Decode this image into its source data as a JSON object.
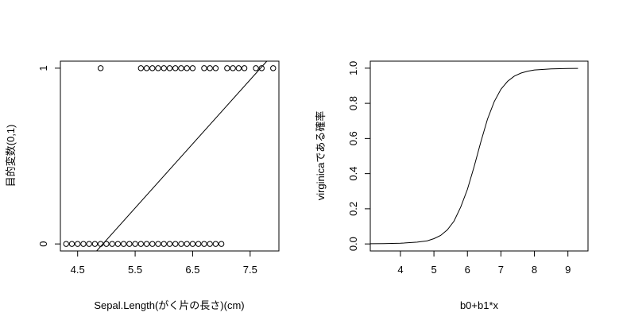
{
  "chart_data": [
    {
      "type": "scatter",
      "title": "",
      "xlabel": "Sepal.Length(がく片の長さ)(cm)",
      "ylabel": "目的変数(0,1)",
      "xlim": [
        4.2,
        8.0
      ],
      "ylim": [
        -0.04,
        1.04
      ],
      "xticks": [
        4.5,
        5.5,
        6.5,
        7.5
      ],
      "xtick_labels": [
        "4.5",
        "5.5",
        "6.5",
        "7.5"
      ],
      "yticks": [
        0,
        1
      ],
      "ytick_labels": [
        "0",
        "1"
      ],
      "grid": false,
      "series": [
        {
          "marker": "open-circle",
          "points": [
            [
              4.3,
              0
            ],
            [
              4.4,
              0
            ],
            [
              4.5,
              0
            ],
            [
              4.6,
              0
            ],
            [
              4.7,
              0
            ],
            [
              4.8,
              0
            ],
            [
              4.9,
              0
            ],
            [
              5.0,
              0
            ],
            [
              5.1,
              0
            ],
            [
              5.2,
              0
            ],
            [
              5.3,
              0
            ],
            [
              5.4,
              0
            ],
            [
              5.5,
              0
            ],
            [
              5.6,
              0
            ],
            [
              5.7,
              0
            ],
            [
              5.8,
              0
            ],
            [
              5.9,
              0
            ],
            [
              6.0,
              0
            ],
            [
              6.1,
              0
            ],
            [
              6.2,
              0
            ],
            [
              6.3,
              0
            ],
            [
              6.4,
              0
            ],
            [
              6.5,
              0
            ],
            [
              6.6,
              0
            ],
            [
              6.7,
              0
            ],
            [
              6.8,
              0
            ],
            [
              6.9,
              0
            ],
            [
              7.0,
              0
            ],
            [
              4.9,
              1
            ],
            [
              5.6,
              1
            ],
            [
              5.7,
              1
            ],
            [
              5.8,
              1
            ],
            [
              5.9,
              1
            ],
            [
              6.0,
              1
            ],
            [
              6.1,
              1
            ],
            [
              6.2,
              1
            ],
            [
              6.3,
              1
            ],
            [
              6.4,
              1
            ],
            [
              6.5,
              1
            ],
            [
              6.7,
              1
            ],
            [
              6.8,
              1
            ],
            [
              6.9,
              1
            ],
            [
              7.1,
              1
            ],
            [
              7.2,
              1
            ],
            [
              7.3,
              1
            ],
            [
              7.4,
              1
            ],
            [
              7.6,
              1
            ],
            [
              7.7,
              1
            ],
            [
              7.9,
              1
            ]
          ]
        },
        {
          "type": "line",
          "points": [
            [
              4.83,
              -0.04
            ],
            [
              7.79,
              1.04
            ]
          ]
        }
      ]
    },
    {
      "type": "line",
      "title": "",
      "xlabel": "b0+b1*x",
      "ylabel": "virginicaである確率",
      "xlim": [
        3.1,
        9.6
      ],
      "ylim": [
        -0.04,
        1.04
      ],
      "xticks": [
        4,
        5,
        6,
        7,
        8,
        9
      ],
      "xtick_labels": [
        "4",
        "5",
        "6",
        "7",
        "8",
        "9"
      ],
      "yticks": [
        0,
        0.2,
        0.4,
        0.6,
        0.8,
        1.0
      ],
      "ytick_labels": [
        "0.0",
        "0.2",
        "0.4",
        "0.6",
        "0.8",
        "1.0"
      ],
      "grid": false,
      "series": [
        {
          "points": [
            [
              3.1,
              0.001
            ],
            [
              3.5,
              0.002
            ],
            [
              4.0,
              0.004
            ],
            [
              4.5,
              0.01
            ],
            [
              4.8,
              0.018
            ],
            [
              5.0,
              0.03
            ],
            [
              5.2,
              0.048
            ],
            [
              5.4,
              0.08
            ],
            [
              5.6,
              0.13
            ],
            [
              5.8,
              0.21
            ],
            [
              6.0,
              0.31
            ],
            [
              6.2,
              0.44
            ],
            [
              6.4,
              0.58
            ],
            [
              6.6,
              0.71
            ],
            [
              6.8,
              0.81
            ],
            [
              7.0,
              0.88
            ],
            [
              7.2,
              0.925
            ],
            [
              7.4,
              0.955
            ],
            [
              7.6,
              0.972
            ],
            [
              7.8,
              0.983
            ],
            [
              8.0,
              0.99
            ],
            [
              8.5,
              0.996
            ],
            [
              9.0,
              0.998
            ],
            [
              9.3,
              0.999
            ]
          ]
        }
      ]
    }
  ]
}
